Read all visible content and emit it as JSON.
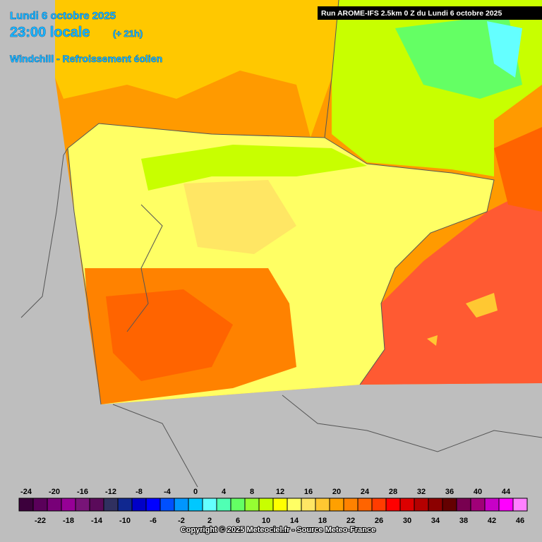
{
  "header": {
    "date": "Lundi 6 octobre 2025",
    "time": "23:00 locale",
    "lead": "(+ 21h)",
    "product": "Windchill - Refroissement éolien",
    "run": "Run AROME-IFS 2.5km 0 Z du Lundi 6 octobre 2025"
  },
  "legend": {
    "values": [
      -24,
      -22,
      -20,
      -18,
      -16,
      -14,
      -12,
      -10,
      -8,
      -6,
      -4,
      -2,
      0,
      2,
      4,
      6,
      8,
      10,
      12,
      14,
      16,
      18,
      20,
      22,
      24,
      26,
      28,
      30,
      32,
      34,
      36,
      38,
      40,
      42,
      44,
      46
    ],
    "colors": [
      "#3c003c",
      "#5a005a",
      "#780078",
      "#960096",
      "#781478",
      "#5a0a5a",
      "#303060",
      "#102890",
      "#0000c8",
      "#0000ff",
      "#0050ff",
      "#0096ff",
      "#00c8ff",
      "#64ffff",
      "#50ffb4",
      "#64ff64",
      "#96ff32",
      "#c8ff00",
      "#ffff00",
      "#ffff64",
      "#ffe664",
      "#ffc832",
      "#ffa000",
      "#ff8200",
      "#ff6400",
      "#ff3c00",
      "#ff0000",
      "#dc0000",
      "#b40000",
      "#8c0000",
      "#640000",
      "#780050",
      "#a00078",
      "#c800c8",
      "#ff00ff",
      "#ff80ff"
    ]
  },
  "copyright": "Copyright © 2025 Meteociel.fr - Source Meteo-France"
}
